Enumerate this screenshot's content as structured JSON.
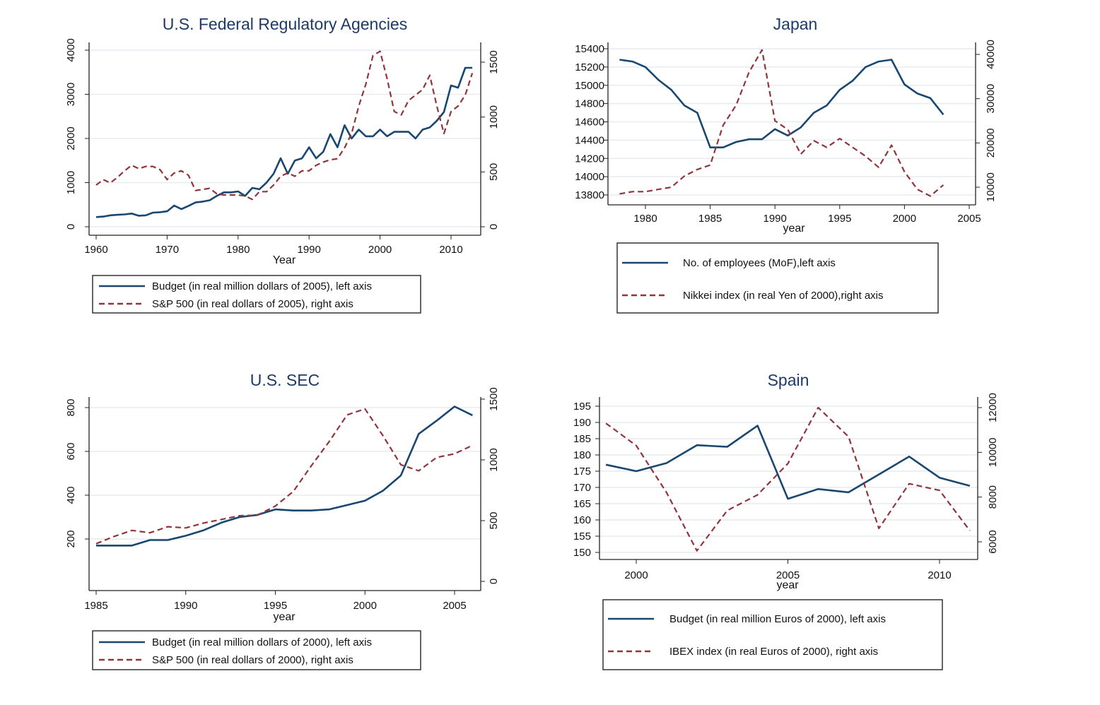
{
  "colors": {
    "left_series": "#1a476f",
    "right_series": "#90353b",
    "grid": "#e6ecf0",
    "title": "#1e3a66"
  },
  "chart_data": [
    {
      "type": "line",
      "title": "U.S. Federal Regulatory Agencies",
      "xlabel": "Year",
      "x_ticks": [
        "1960",
        "1970",
        "1980",
        "1990",
        "2000",
        "2010"
      ],
      "yleft_ticks": [
        "0",
        "1000",
        "2000",
        "3000",
        "4000"
      ],
      "yright_ticks": [
        "0",
        "500",
        "1000",
        "1500"
      ],
      "x": [
        1960,
        1961,
        1962,
        1963,
        1964,
        1965,
        1966,
        1967,
        1968,
        1969,
        1970,
        1971,
        1972,
        1973,
        1974,
        1975,
        1976,
        1977,
        1978,
        1979,
        1980,
        1981,
        1982,
        1983,
        1984,
        1985,
        1986,
        1987,
        1988,
        1989,
        1990,
        1991,
        1992,
        1993,
        1994,
        1995,
        1996,
        1997,
        1998,
        1999,
        2000,
        2001,
        2002,
        2003,
        2004,
        2005,
        2006,
        2007,
        2008,
        2009,
        2010,
        2011,
        2012,
        2013
      ],
      "series": [
        {
          "name": "Budget (in real million dollars of 2005), left axis",
          "axis": "left",
          "style": "solid",
          "values": [
            220,
            230,
            260,
            270,
            280,
            300,
            250,
            260,
            320,
            330,
            350,
            480,
            400,
            470,
            550,
            570,
            600,
            700,
            780,
            780,
            800,
            700,
            880,
            850,
            1000,
            1200,
            1550,
            1200,
            1500,
            1550,
            1800,
            1550,
            1700,
            2100,
            1800,
            2300,
            2000,
            2200,
            2050,
            2050,
            2200,
            2050,
            2150,
            2150,
            2150,
            2000,
            2200,
            2250,
            2400,
            2600,
            3200,
            3150,
            3600,
            3600
          ]
        },
        {
          "name": "S&P 500 (in real dollars of 2005), right axis",
          "axis": "right",
          "style": "dashed",
          "values": [
            380,
            430,
            400,
            450,
            510,
            560,
            530,
            550,
            550,
            520,
            430,
            490,
            510,
            470,
            330,
            340,
            350,
            300,
            290,
            290,
            290,
            280,
            250,
            320,
            320,
            380,
            460,
            490,
            460,
            510,
            510,
            560,
            590,
            610,
            620,
            720,
            850,
            1100,
            1300,
            1560,
            1600,
            1350,
            1050,
            1020,
            1150,
            1200,
            1250,
            1380,
            1100,
            850,
            1050,
            1100,
            1200,
            1400
          ]
        }
      ]
    },
    {
      "type": "line",
      "title": "Japan",
      "xlabel": "year",
      "x_ticks": [
        "1980",
        "1985",
        "1990",
        "1995",
        "2000",
        "2005"
      ],
      "yleft_ticks": [
        "13800",
        "14000",
        "14200",
        "14400",
        "14600",
        "14800",
        "15000",
        "15200",
        "15400"
      ],
      "yright_ticks": [
        "10000",
        "20000",
        "30000",
        "40000"
      ],
      "x": [
        1978,
        1979,
        1980,
        1981,
        1982,
        1983,
        1984,
        1985,
        1986,
        1987,
        1988,
        1989,
        1990,
        1991,
        1992,
        1993,
        1994,
        1995,
        1996,
        1997,
        1998,
        1999,
        2000,
        2001,
        2002,
        2003
      ],
      "series": [
        {
          "name": "No. of employees (MoF),left axis",
          "axis": "left",
          "style": "solid",
          "values": [
            15280,
            15260,
            15200,
            15060,
            14950,
            14780,
            14700,
            14320,
            14320,
            14380,
            14410,
            14410,
            14520,
            14450,
            14540,
            14700,
            14780,
            14950,
            15050,
            15200,
            15260,
            15280,
            15010,
            14910,
            14860,
            14680
          ]
        },
        {
          "name": "Nikkei index (in real Yen of 2000),right axis",
          "axis": "right",
          "style": "dashed",
          "values": [
            8500,
            9000,
            9000,
            9500,
            10000,
            12500,
            14000,
            15000,
            24000,
            28500,
            36000,
            41000,
            25000,
            23000,
            17500,
            20500,
            19000,
            21000,
            19000,
            17000,
            14500,
            19500,
            13500,
            9500,
            8000,
            10500
          ]
        }
      ]
    },
    {
      "type": "line",
      "title": "U.S. SEC",
      "xlabel": "year",
      "x_ticks": [
        "1985",
        "1990",
        "1995",
        "2000",
        "2005"
      ],
      "yleft_ticks": [
        "200",
        "400",
        "600",
        "800"
      ],
      "yright_ticks": [
        "0",
        "500",
        "1000",
        "1500"
      ],
      "x": [
        1985,
        1986,
        1987,
        1988,
        1989,
        1990,
        1991,
        1992,
        1993,
        1994,
        1995,
        1996,
        1997,
        1998,
        1999,
        2000,
        2001,
        2002,
        2003,
        2004,
        2005,
        2006
      ],
      "series": [
        {
          "name": "Budget (in real million dollars of 2000), left axis",
          "axis": "left",
          "style": "solid",
          "values": [
            170,
            170,
            170,
            195,
            195,
            215,
            240,
            275,
            300,
            310,
            335,
            330,
            330,
            335,
            355,
            375,
            420,
            490,
            680,
            740,
            805,
            765
          ]
        },
        {
          "name": "S&P 500 (in real dollars of 2000), right axis",
          "axis": "right",
          "style": "dashed",
          "values": [
            310,
            370,
            420,
            400,
            450,
            440,
            480,
            510,
            540,
            545,
            620,
            740,
            950,
            1150,
            1370,
            1420,
            1200,
            960,
            910,
            1020,
            1050,
            1120
          ]
        }
      ]
    },
    {
      "type": "line",
      "title": "Spain",
      "xlabel": "year",
      "x_ticks": [
        "2000",
        "2005",
        "2010"
      ],
      "yleft_ticks": [
        "150",
        "155",
        "160",
        "165",
        "170",
        "175",
        "180",
        "185",
        "190",
        "195"
      ],
      "yright_ticks": [
        "6000",
        "8000",
        "10000",
        "12000"
      ],
      "x": [
        1999,
        2000,
        2001,
        2002,
        2003,
        2004,
        2005,
        2006,
        2007,
        2008,
        2009,
        2010,
        2011
      ],
      "series": [
        {
          "name": "Budget (in real million Euros of 2000), left axis",
          "axis": "left",
          "style": "solid",
          "values": [
            177,
            175,
            177.5,
            183,
            182.5,
            189,
            166.5,
            169.5,
            168.5,
            174,
            179.5,
            173,
            170.5
          ]
        },
        {
          "name": "IBEX index (in real Euros of 2000), right axis",
          "axis": "right",
          "style": "dashed",
          "values": [
            11300,
            10300,
            8200,
            5600,
            7400,
            8100,
            9500,
            12000,
            10700,
            6600,
            8600,
            8300,
            6500
          ]
        }
      ]
    }
  ]
}
